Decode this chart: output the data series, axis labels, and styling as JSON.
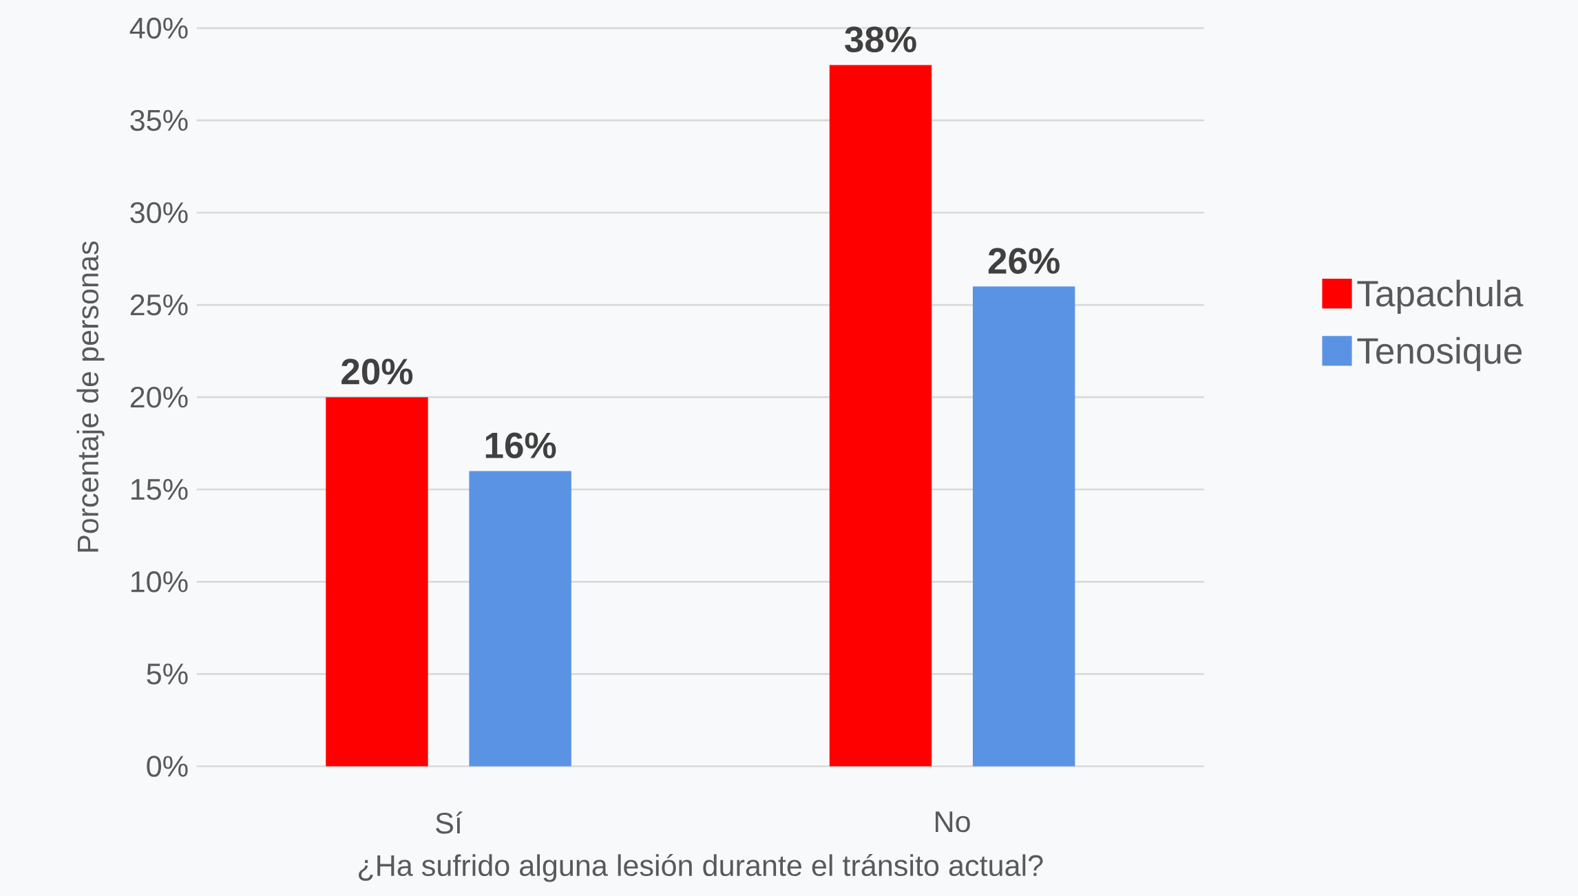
{
  "chart_data": {
    "type": "bar",
    "xlabel": "¿Ha sufrido alguna lesión durante el tránsito actual?",
    "ylabel": "Porcentaje de personas",
    "categories": [
      "Sí",
      "No"
    ],
    "series": [
      {
        "name": "Tapachula",
        "color": "#ff0000",
        "values": [
          20,
          38
        ],
        "value_labels": [
          "20%",
          "38%"
        ]
      },
      {
        "name": "Tenosique",
        "color": "#5b93e4",
        "values": [
          16,
          26
        ],
        "value_labels": [
          "16%",
          "26%"
        ]
      }
    ],
    "ylim": [
      0,
      40
    ],
    "yticks": [
      {
        "value": 0,
        "label": "0%"
      },
      {
        "value": 5,
        "label": "5%"
      },
      {
        "value": 10,
        "label": "10%"
      },
      {
        "value": 15,
        "label": "15%"
      },
      {
        "value": 20,
        "label": "20%"
      },
      {
        "value": 25,
        "label": "25%"
      },
      {
        "value": 30,
        "label": "30%"
      },
      {
        "value": 35,
        "label": "35%"
      },
      {
        "value": 40,
        "label": "40%"
      }
    ],
    "grid": "y",
    "legend": "right"
  }
}
